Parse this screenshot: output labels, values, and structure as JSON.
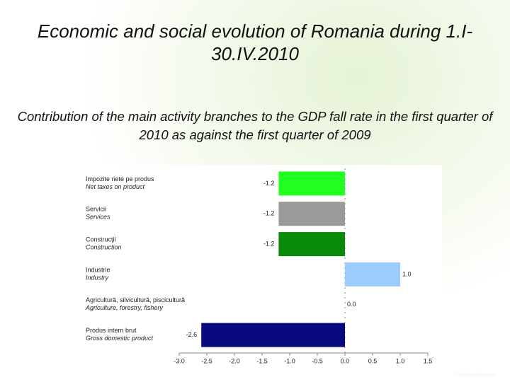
{
  "title": "Economic and social evolution of Romania during 1.I-30.IV.2010",
  "footer": "© TemplatesWise.com",
  "chart_data": {
    "type": "hbar",
    "title": "Contribution of the main activity branches to the GDP fall rate in the first quarter of 2010 as against the first quarter of 2009",
    "categories": [
      "Impozite nete pe produs",
      "Servicii",
      "Construcţii",
      "Industrie",
      "Agricultură, silvicultură, piscicultură",
      "Produs intern brut"
    ],
    "categories_en": [
      "Net taxes on product",
      "Services",
      "Construction",
      "Industry",
      "Agriculture, forestry, fishery",
      "Gross domestic product"
    ],
    "values": [
      -1.2,
      -1.2,
      -1.2,
      1.0,
      0.0,
      -2.6
    ],
    "value_labels": [
      "-1.2",
      "-1.2",
      "-1.2",
      "1.0",
      "0.0",
      "-2.6"
    ],
    "colors": [
      "#22ff22",
      "#9a9a9a",
      "#0a8a0a",
      "#9ccbff",
      "#cfe0f0",
      "#0a0a80"
    ],
    "xlim": [
      -3.0,
      1.5
    ],
    "xticks": [
      {
        "value": -3.0,
        "label": "-3.0"
      },
      -2.5,
      {
        "value": -2.0,
        "label": "-2.0"
      },
      -1.5,
      {
        "value": -1.0,
        "label": "-1.0"
      },
      -0.5,
      {
        "value": 0.0,
        "label": "0.0"
      },
      0.5,
      {
        "value": 1.0,
        "label": "1.0"
      },
      1.5
    ]
  }
}
